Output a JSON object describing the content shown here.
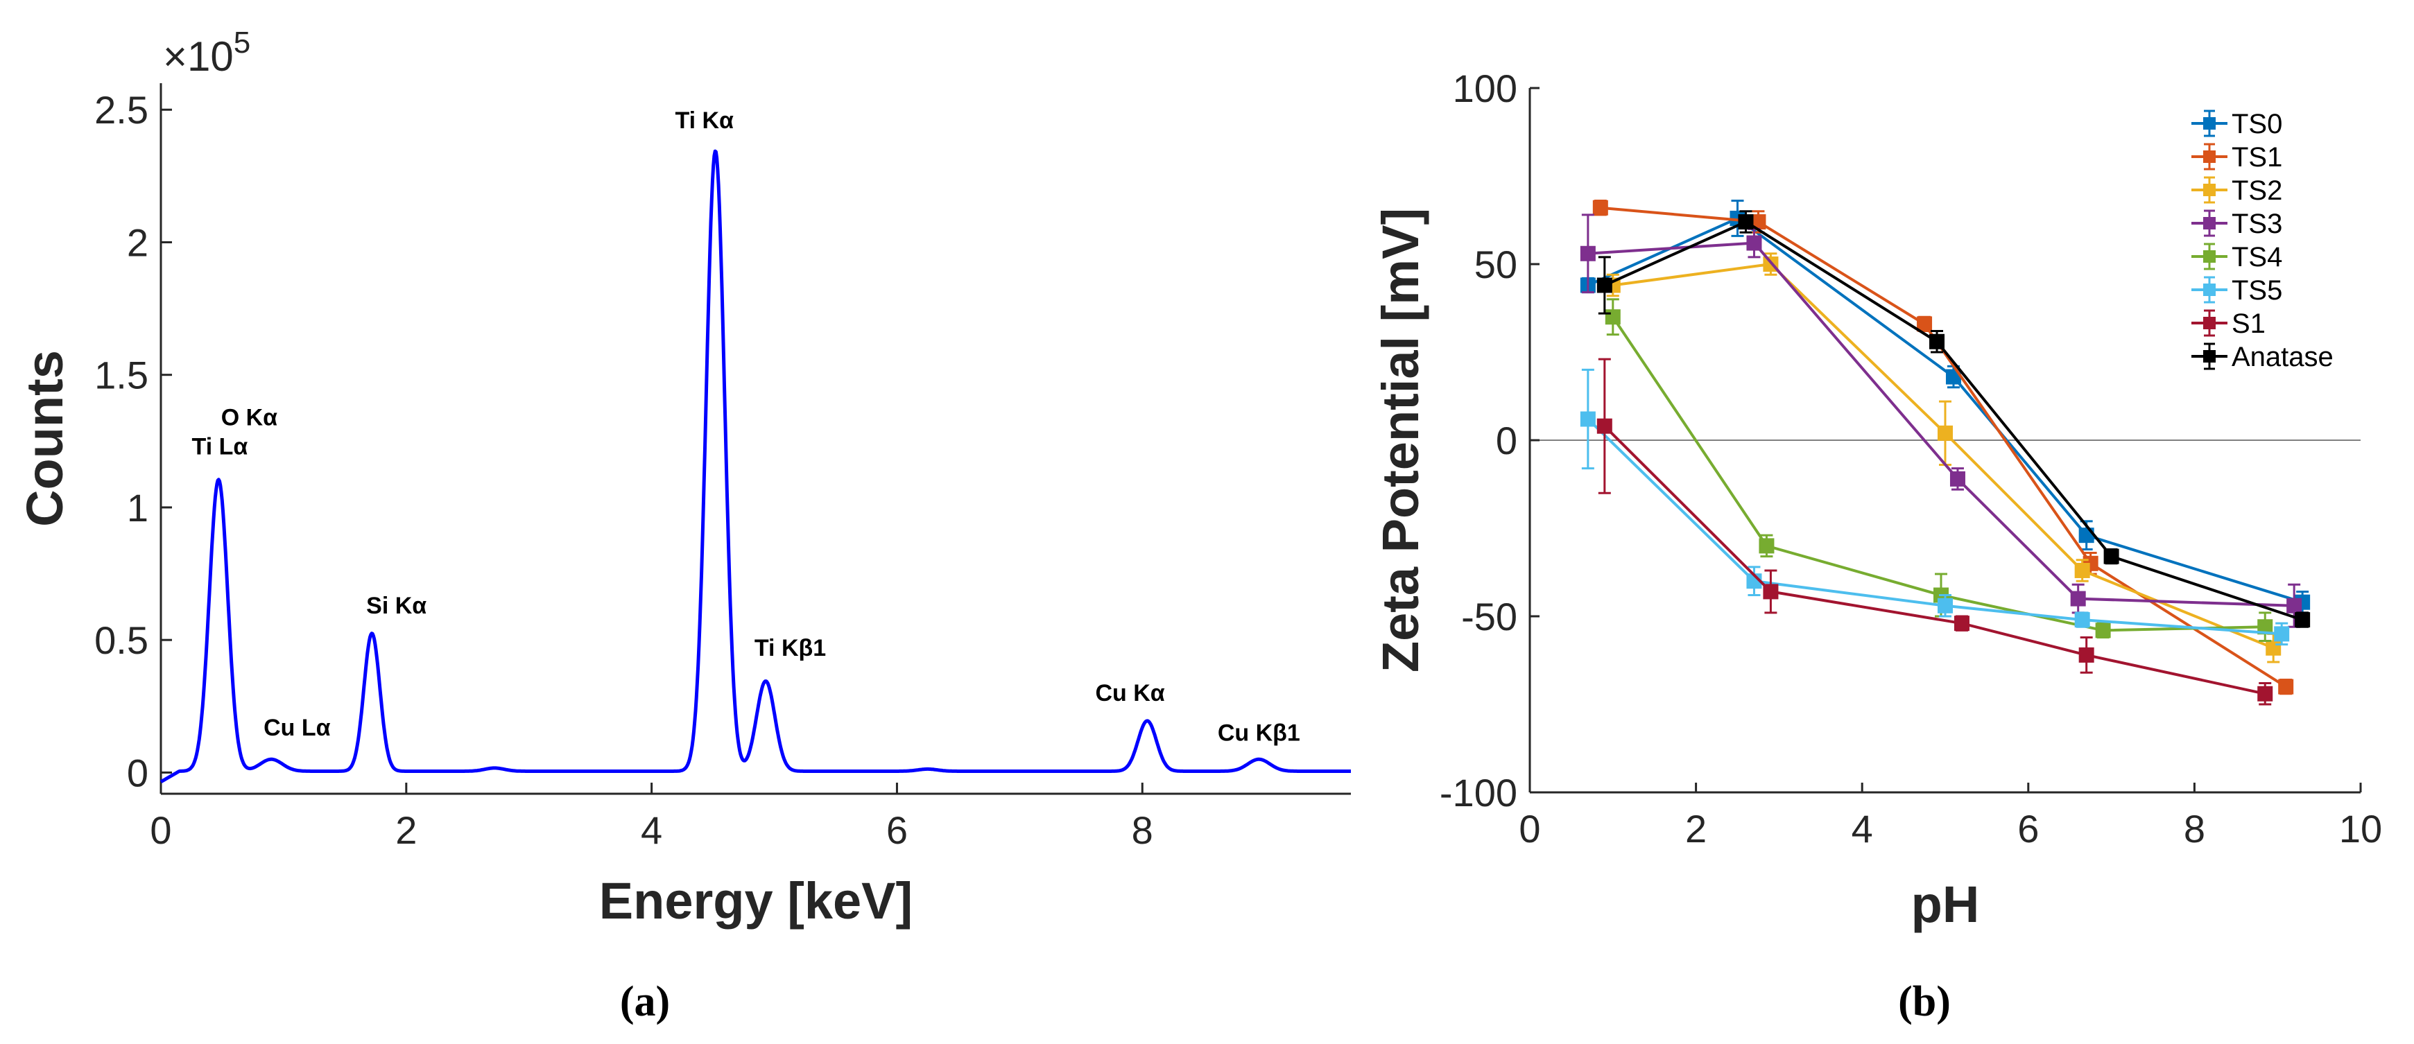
{
  "chart_data": [
    {
      "type": "line",
      "panel": "(a)",
      "xlabel": "Energy [keV]",
      "ylabel": "Counts",
      "y_multiplier": "×10",
      "y_exponent": "5",
      "xlim": [
        0,
        9.7
      ],
      "ylim": [
        -0.08,
        2.6
      ],
      "x_ticks": [
        0,
        2,
        4,
        6,
        8
      ],
      "y_ticks": [
        0,
        0.5,
        1,
        1.5,
        2,
        2.5
      ],
      "line_color": "#0000ff",
      "baseline": 0.005,
      "peaks": [
        {
          "center": 0.47,
          "height": 1.1,
          "width": 0.075
        },
        {
          "center": 0.9,
          "height": 0.045,
          "width": 0.09
        },
        {
          "center": 1.72,
          "height": 0.52,
          "width": 0.065
        },
        {
          "center": 2.72,
          "height": 0.012,
          "width": 0.08
        },
        {
          "center": 4.52,
          "height": 2.34,
          "width": 0.075
        },
        {
          "center": 4.93,
          "height": 0.34,
          "width": 0.075
        },
        {
          "center": 6.25,
          "height": 0.008,
          "width": 0.08
        },
        {
          "center": 8.04,
          "height": 0.19,
          "width": 0.075
        },
        {
          "center": 8.95,
          "height": 0.045,
          "width": 0.09
        }
      ],
      "annotations": [
        {
          "text": "O Kα",
          "x": 0.72,
          "y": 1.31
        },
        {
          "text": "Ti Lα",
          "x": 0.48,
          "y": 1.2
        },
        {
          "text": "Cu Lα",
          "x": 1.11,
          "y": 0.14
        },
        {
          "text": "Si Kα",
          "x": 1.92,
          "y": 0.6
        },
        {
          "text": "Ti Kα",
          "x": 4.43,
          "y": 2.43
        },
        {
          "text": "Ti Kβ1",
          "x": 5.13,
          "y": 0.44
        },
        {
          "text": "Cu Kα",
          "x": 7.9,
          "y": 0.27
        },
        {
          "text": "Cu Kβ1",
          "x": 8.95,
          "y": 0.12
        }
      ]
    },
    {
      "type": "line",
      "panel": "(b)",
      "xlabel": "pH",
      "ylabel": "Zeta Potential [mV]",
      "xlim": [
        0,
        10
      ],
      "ylim": [
        -100,
        100
      ],
      "x_ticks": [
        0,
        2,
        4,
        6,
        8,
        10
      ],
      "y_ticks": [
        -100,
        -50,
        0,
        50,
        100
      ],
      "legend_position": "top-right",
      "series": [
        {
          "name": "TS0",
          "color": "#0072bd",
          "points": [
            [
              0.7,
              44,
              2
            ],
            [
              2.5,
              63,
              5
            ],
            [
              5.1,
              18,
              3
            ],
            [
              6.7,
              -27,
              4
            ],
            [
              9.3,
              -46,
              3
            ]
          ]
        },
        {
          "name": "TS1",
          "color": "#d95319",
          "points": [
            [
              0.85,
              66,
              2
            ],
            [
              2.75,
              62,
              3
            ],
            [
              4.75,
              33,
              2
            ],
            [
              6.75,
              -35,
              3
            ],
            [
              9.1,
              -70,
              2
            ]
          ]
        },
        {
          "name": "TS2",
          "color": "#edb120",
          "points": [
            [
              1.0,
              44,
              3
            ],
            [
              2.9,
              50,
              3
            ],
            [
              5.0,
              2,
              9
            ],
            [
              6.65,
              -37,
              3
            ],
            [
              8.95,
              -59,
              4
            ]
          ]
        },
        {
          "name": "TS3",
          "color": "#7e2f8e",
          "points": [
            [
              0.7,
              53,
              11
            ],
            [
              2.7,
              56,
              4
            ],
            [
              5.15,
              -11,
              3
            ],
            [
              6.6,
              -45,
              4
            ],
            [
              9.2,
              -47,
              6
            ]
          ]
        },
        {
          "name": "TS4",
          "color": "#77ac30",
          "points": [
            [
              1.0,
              35,
              5
            ],
            [
              2.85,
              -30,
              3
            ],
            [
              4.95,
              -44,
              6
            ],
            [
              6.9,
              -54,
              2
            ],
            [
              8.85,
              -53,
              4
            ]
          ]
        },
        {
          "name": "TS5",
          "color": "#4dbeee",
          "points": [
            [
              0.7,
              6,
              14
            ],
            [
              2.7,
              -40,
              4
            ],
            [
              5.0,
              -47,
              3
            ],
            [
              6.65,
              -51,
              2
            ],
            [
              9.05,
              -55,
              3
            ]
          ]
        },
        {
          "name": "S1",
          "color": "#a2142f",
          "points": [
            [
              0.9,
              4,
              19
            ],
            [
              2.9,
              -43,
              6
            ],
            [
              5.2,
              -52,
              2
            ],
            [
              6.7,
              -61,
              5
            ],
            [
              8.85,
              -72,
              3
            ]
          ]
        },
        {
          "name": "Anatase",
          "color": "#000000",
          "points": [
            [
              0.9,
              44,
              8
            ],
            [
              2.6,
              62,
              3
            ],
            [
              4.9,
              28,
              3
            ],
            [
              7.0,
              -33,
              2
            ],
            [
              9.3,
              -51,
              2
            ]
          ]
        }
      ]
    }
  ]
}
